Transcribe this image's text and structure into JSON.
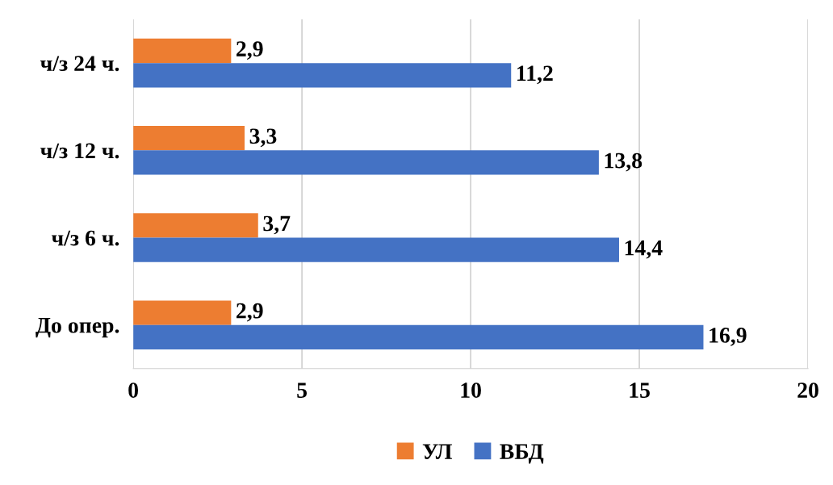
{
  "chart_data": {
    "type": "bar",
    "orientation": "horizontal",
    "categories": [
      "ч/з 24 ч.",
      "ч/з 12 ч.",
      "ч/з 6 ч.",
      "До опер."
    ],
    "series": [
      {
        "name": "УЛ",
        "color": "#ed7d31",
        "values": [
          2.9,
          3.3,
          3.7,
          2.9
        ],
        "value_labels": [
          "2,9",
          "3,3",
          "3,7",
          "2,9"
        ]
      },
      {
        "name": "ВБД",
        "color": "#4472c4",
        "values": [
          11.2,
          13.8,
          14.4,
          16.9
        ],
        "value_labels": [
          "11,2",
          "13,8",
          "14,4",
          "16,9"
        ]
      }
    ],
    "xlim": [
      0,
      20
    ],
    "xticks": [
      0,
      5,
      10,
      15,
      20
    ],
    "grid": "x",
    "legend": "bottom"
  }
}
